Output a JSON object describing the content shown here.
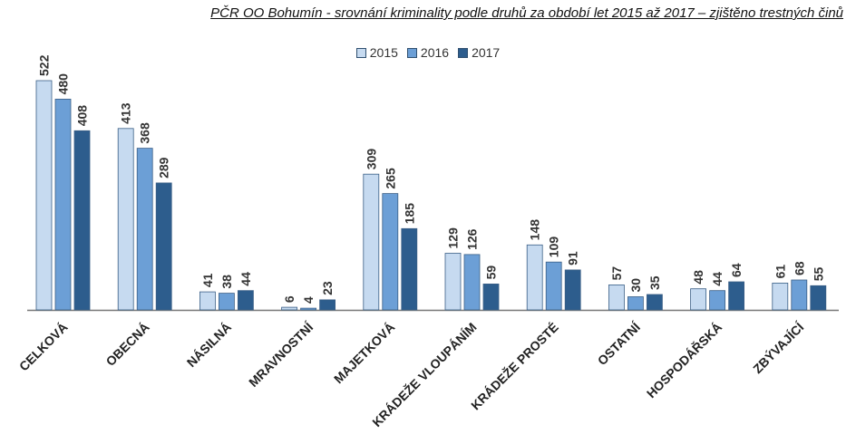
{
  "chart_data": {
    "type": "bar",
    "title": "PČR OO Bohumín - srovnání kriminality podle druhů za období let 2015 až 2017 – zjištěno trestných činů",
    "categories": [
      "CELKOVÁ",
      "OBECNÁ",
      "NÁSILNÁ",
      "MRAVNOSTNÍ",
      "MAJETKOVÁ",
      "KRÁDEŽE VLOUPÁNÍM",
      "KRÁDEŽE PROSTÉ",
      "OSTATNÍ",
      "HOSPODÁŘSKÁ",
      "ZBÝVAJÍCÍ"
    ],
    "series": [
      {
        "name": "2015",
        "color": "#c6daf0",
        "values": [
          522,
          413,
          41,
          6,
          309,
          129,
          148,
          57,
          48,
          61
        ]
      },
      {
        "name": "2016",
        "color": "#6c9fd6",
        "values": [
          480,
          368,
          38,
          4,
          265,
          126,
          109,
          30,
          44,
          68
        ]
      },
      {
        "name": "2017",
        "color": "#2d5d8d",
        "values": [
          408,
          289,
          44,
          23,
          185,
          59,
          91,
          35,
          64,
          55
        ]
      }
    ],
    "ylim": [
      0,
      522
    ],
    "grid": false,
    "legend_position": "top-center",
    "data_labels": true
  }
}
